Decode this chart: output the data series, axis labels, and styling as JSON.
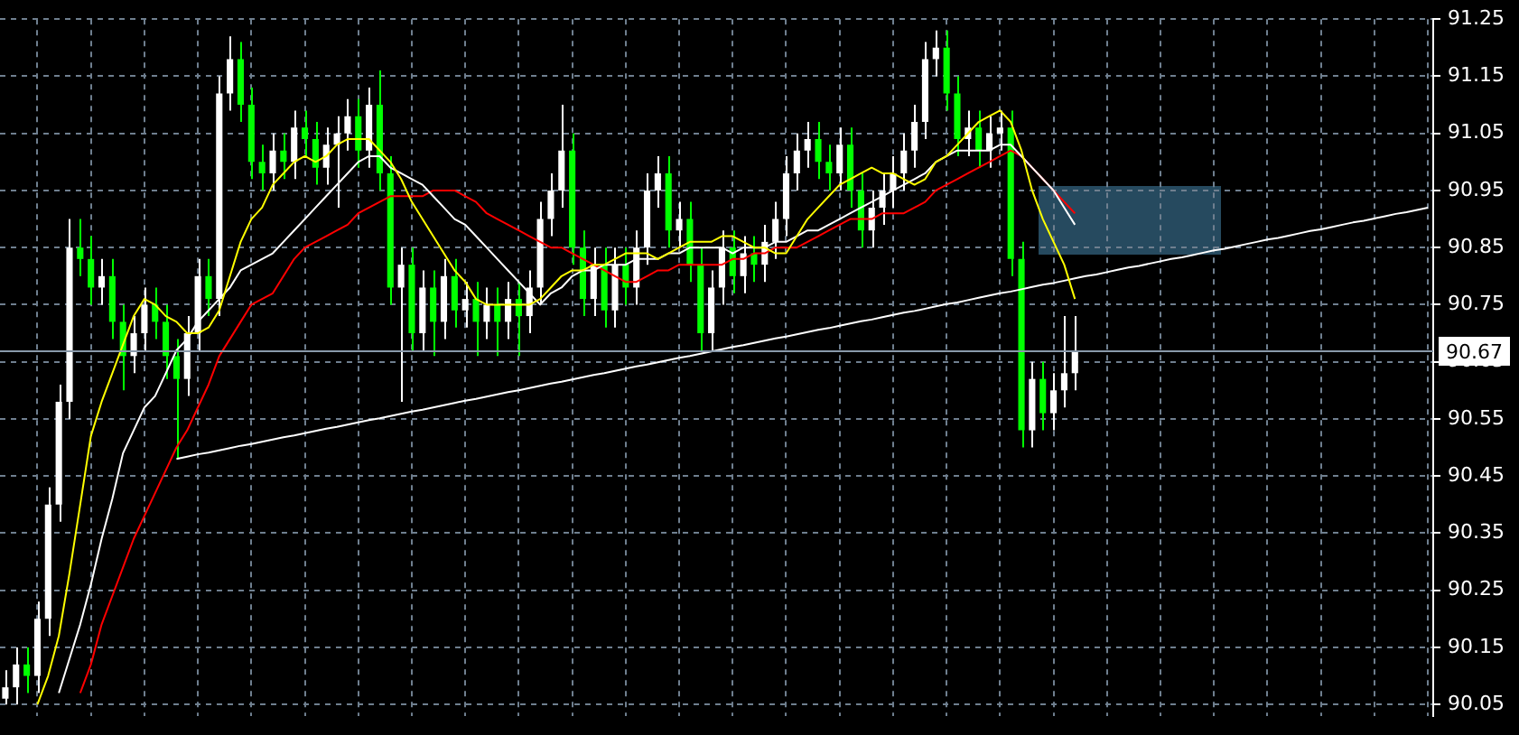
{
  "chart_data": {
    "type": "candlestick",
    "categories": [
      null,
      null,
      null,
      null,
      null,
      null,
      null,
      null,
      null,
      null,
      null,
      null,
      null,
      null,
      null,
      null,
      null,
      null,
      null,
      null,
      null,
      null,
      null,
      null,
      null,
      null,
      null,
      null,
      null,
      null,
      null,
      null,
      null,
      null,
      null,
      null,
      null,
      null,
      null,
      null,
      null,
      null,
      null,
      null,
      null,
      null,
      null,
      null,
      null,
      null,
      null,
      null,
      null,
      null,
      null,
      null,
      null,
      null,
      null,
      null,
      null,
      null,
      null,
      null,
      null,
      null,
      null,
      null,
      null,
      null,
      null,
      null,
      null,
      null,
      null,
      null,
      null,
      null,
      null,
      null,
      null,
      null,
      null,
      null,
      null,
      null,
      null,
      null,
      null,
      null,
      null,
      null,
      null,
      null,
      null,
      null,
      null,
      null,
      null,
      null,
      null,
      null,
      null,
      null,
      null,
      null,
      null,
      null,
      null,
      null,
      null,
      null,
      null,
      null,
      null,
      null,
      null,
      null,
      null,
      null,
      null,
      null,
      null,
      null,
      null,
      null,
      null,
      null,
      null,
      null,
      null,
      null,
      null,
      null
    ],
    "ohlc": [
      [
        90.06,
        90.11,
        90.05,
        90.08
      ],
      [
        90.08,
        90.15,
        90.05,
        90.12
      ],
      [
        90.12,
        90.15,
        90.07,
        90.1
      ],
      [
        90.1,
        90.23,
        90.07,
        90.2
      ],
      [
        90.2,
        90.43,
        90.17,
        90.4
      ],
      [
        90.4,
        90.61,
        90.37,
        90.58
      ],
      [
        90.58,
        90.9,
        90.55,
        90.85
      ],
      [
        90.85,
        90.9,
        90.8,
        90.83
      ],
      [
        90.83,
        90.87,
        90.75,
        90.78
      ],
      [
        90.78,
        90.83,
        90.75,
        90.8
      ],
      [
        90.8,
        90.83,
        90.69,
        90.72
      ],
      [
        90.72,
        90.75,
        90.6,
        90.66
      ],
      [
        90.66,
        90.73,
        90.63,
        90.7
      ],
      [
        90.7,
        90.78,
        90.67,
        90.75
      ],
      [
        90.75,
        90.78,
        90.69,
        90.72
      ],
      [
        90.72,
        90.75,
        90.62,
        90.66
      ],
      [
        90.66,
        90.69,
        90.48,
        90.62
      ],
      [
        90.62,
        90.73,
        90.59,
        90.7
      ],
      [
        90.7,
        90.83,
        90.67,
        90.8
      ],
      [
        90.8,
        90.83,
        90.73,
        90.76
      ],
      [
        90.76,
        91.15,
        90.73,
        91.12
      ],
      [
        91.12,
        91.22,
        91.09,
        91.18
      ],
      [
        91.18,
        91.21,
        91.07,
        91.1
      ],
      [
        91.1,
        91.13,
        90.97,
        91.0
      ],
      [
        91.0,
        91.03,
        90.95,
        90.98
      ],
      [
        90.98,
        91.05,
        90.95,
        91.02
      ],
      [
        91.02,
        91.05,
        90.97,
        91.0
      ],
      [
        91.0,
        91.09,
        90.97,
        91.06
      ],
      [
        91.06,
        91.09,
        91.01,
        91.04
      ],
      [
        91.04,
        91.07,
        90.96,
        90.99
      ],
      [
        90.99,
        91.06,
        90.96,
        91.03
      ],
      [
        91.03,
        91.08,
        90.92,
        91.05
      ],
      [
        91.05,
        91.11,
        91.02,
        91.08
      ],
      [
        91.08,
        91.11,
        90.99,
        91.02
      ],
      [
        91.02,
        91.13,
        90.99,
        91.1
      ],
      [
        91.1,
        91.16,
        90.95,
        90.98
      ],
      [
        90.98,
        91.01,
        90.75,
        90.78
      ],
      [
        90.78,
        90.85,
        90.58,
        90.82
      ],
      [
        90.82,
        90.85,
        90.67,
        90.7
      ],
      [
        90.7,
        90.81,
        90.67,
        90.78
      ],
      [
        90.78,
        90.81,
        90.66,
        90.72
      ],
      [
        90.72,
        90.83,
        90.69,
        90.8
      ],
      [
        90.8,
        90.83,
        90.71,
        90.74
      ],
      [
        90.74,
        90.79,
        90.71,
        90.76
      ],
      [
        90.76,
        90.79,
        90.66,
        90.72
      ],
      [
        90.72,
        90.78,
        90.69,
        90.75
      ],
      [
        90.75,
        90.78,
        90.66,
        90.72
      ],
      [
        90.72,
        90.79,
        90.69,
        90.76
      ],
      [
        90.76,
        90.79,
        90.66,
        90.73
      ],
      [
        90.73,
        90.81,
        90.7,
        90.78
      ],
      [
        90.78,
        90.93,
        90.75,
        90.9
      ],
      [
        90.9,
        90.98,
        90.87,
        90.95
      ],
      [
        90.95,
        91.1,
        90.92,
        91.02
      ],
      [
        91.02,
        91.05,
        90.82,
        90.85
      ],
      [
        90.85,
        90.88,
        90.73,
        90.76
      ],
      [
        90.76,
        90.85,
        90.73,
        90.82
      ],
      [
        90.82,
        90.85,
        90.71,
        90.74
      ],
      [
        90.74,
        90.85,
        90.71,
        90.82
      ],
      [
        90.82,
        90.85,
        90.75,
        90.78
      ],
      [
        90.78,
        90.88,
        90.75,
        90.85
      ],
      [
        90.85,
        90.98,
        90.82,
        90.95
      ],
      [
        90.95,
        91.01,
        90.92,
        90.98
      ],
      [
        90.98,
        91.01,
        90.85,
        90.88
      ],
      [
        90.88,
        90.93,
        90.85,
        90.9
      ],
      [
        90.9,
        90.93,
        90.79,
        90.82
      ],
      [
        90.82,
        90.85,
        90.67,
        90.7
      ],
      [
        90.7,
        90.81,
        90.67,
        90.78
      ],
      [
        90.78,
        90.88,
        90.75,
        90.85
      ],
      [
        90.85,
        90.88,
        90.77,
        90.8
      ],
      [
        90.8,
        90.87,
        90.77,
        90.84
      ],
      [
        90.84,
        90.87,
        90.79,
        90.82
      ],
      [
        90.82,
        90.89,
        90.79,
        90.86
      ],
      [
        90.86,
        90.93,
        90.83,
        90.9
      ],
      [
        90.9,
        91.01,
        90.87,
        90.98
      ],
      [
        90.98,
        91.05,
        90.95,
        91.02
      ],
      [
        91.02,
        91.07,
        90.99,
        91.04
      ],
      [
        91.04,
        91.07,
        90.97,
        91.0
      ],
      [
        91.0,
        91.03,
        90.95,
        90.98
      ],
      [
        90.98,
        91.06,
        90.95,
        91.03
      ],
      [
        91.03,
        91.06,
        90.92,
        90.95
      ],
      [
        90.95,
        90.98,
        90.85,
        90.88
      ],
      [
        90.88,
        90.95,
        90.85,
        90.92
      ],
      [
        90.92,
        90.98,
        90.89,
        90.95
      ],
      [
        90.95,
        91.01,
        90.92,
        90.98
      ],
      [
        90.98,
        91.05,
        90.95,
        91.02
      ],
      [
        91.02,
        91.1,
        90.99,
        91.07
      ],
      [
        91.07,
        91.21,
        91.04,
        91.18
      ],
      [
        91.18,
        91.23,
        91.15,
        91.2
      ],
      [
        91.2,
        91.23,
        91.09,
        91.12
      ],
      [
        91.12,
        91.15,
        91.01,
        91.04
      ],
      [
        91.04,
        91.09,
        91.01,
        91.06
      ],
      [
        91.06,
        91.09,
        90.99,
        91.02
      ],
      [
        91.02,
        91.08,
        90.99,
        91.05
      ],
      [
        91.05,
        91.09,
        91.02,
        91.06
      ],
      [
        91.06,
        91.09,
        90.8,
        90.83
      ],
      [
        90.83,
        90.86,
        90.5,
        90.53
      ],
      [
        90.53,
        90.65,
        90.5,
        90.62
      ],
      [
        90.62,
        90.65,
        90.53,
        90.56
      ],
      [
        90.56,
        90.63,
        90.53,
        90.6
      ],
      [
        90.6,
        90.73,
        90.57,
        90.63
      ],
      [
        90.63,
        90.73,
        90.6,
        90.67
      ],
      null,
      null,
      null,
      null,
      null,
      null,
      null,
      null,
      null,
      null,
      null,
      null,
      null,
      null,
      null,
      null,
      null,
      null,
      null,
      null,
      null,
      null,
      null,
      null,
      null,
      null,
      null,
      null,
      null,
      null,
      null,
      null,
      null
    ],
    "colors": [
      "#ffffff",
      "#ffffff",
      "#00ff00",
      "#ffffff",
      "#ffffff",
      "#ffffff",
      "#ffffff",
      "#00ff00",
      "#00ff00",
      "#ffffff",
      "#00ff00",
      "#00ff00",
      "#ffffff",
      "#ffffff",
      "#00ff00",
      "#00ff00",
      "#00ff00",
      "#ffffff",
      "#ffffff",
      "#00ff00",
      "#ffffff",
      "#ffffff",
      "#00ff00",
      "#00ff00",
      "#00ff00",
      "#ffffff",
      "#00ff00",
      "#ffffff",
      "#00ff00",
      "#00ff00",
      "#ffffff",
      "#ffffff",
      "#ffffff",
      "#00ff00",
      "#ffffff",
      "#00ff00",
      "#00ff00",
      "#ffffff",
      "#00ff00",
      "#ffffff",
      "#00ff00",
      "#ffffff",
      "#00ff00",
      "#ffffff",
      "#00ff00",
      "#ffffff",
      "#00ff00",
      "#ffffff",
      "#00ff00",
      "#ffffff",
      "#ffffff",
      "#ffffff",
      "#ffffff",
      "#00ff00",
      "#00ff00",
      "#ffffff",
      "#00ff00",
      "#ffffff",
      "#00ff00",
      "#ffffff",
      "#ffffff",
      "#ffffff",
      "#00ff00",
      "#ffffff",
      "#00ff00",
      "#00ff00",
      "#ffffff",
      "#ffffff",
      "#00ff00",
      "#ffffff",
      "#00ff00",
      "#ffffff",
      "#ffffff",
      "#ffffff",
      "#ffffff",
      "#ffffff",
      "#00ff00",
      "#00ff00",
      "#ffffff",
      "#00ff00",
      "#00ff00",
      "#ffffff",
      "#ffffff",
      "#ffffff",
      "#ffffff",
      "#ffffff",
      "#ffffff",
      "#ffffff",
      "#00ff00",
      "#00ff00",
      "#ffffff",
      "#00ff00",
      "#ffffff",
      "#ffffff",
      "#00ff00",
      "#00ff00",
      "#ffffff",
      "#00ff00",
      "#ffffff",
      "#ffffff",
      "#ffffff",
      null,
      null,
      null,
      null,
      null,
      null,
      null,
      null,
      null,
      null,
      null,
      null,
      null,
      null,
      null,
      null,
      null,
      null,
      null,
      null,
      null,
      null,
      null,
      null,
      null,
      null,
      null,
      null,
      null,
      null,
      null,
      null,
      null
    ],
    "series": [
      {
        "type": "line",
        "color": "#ffff00",
        "values": [
          null,
          null,
          null,
          90.05,
          90.1,
          90.17,
          90.28,
          90.4,
          90.52,
          90.58,
          90.63,
          90.68,
          90.73,
          90.76,
          90.75,
          90.73,
          90.72,
          90.7,
          90.7,
          90.71,
          90.74,
          90.8,
          90.86,
          90.9,
          90.92,
          90.96,
          90.98,
          91.0,
          91.01,
          91.0,
          91.01,
          91.03,
          91.04,
          91.04,
          91.04,
          91.02,
          91.0,
          90.97,
          90.93,
          90.9,
          90.87,
          90.84,
          90.81,
          90.79,
          90.76,
          90.75,
          90.75,
          90.75,
          90.75,
          90.75,
          90.76,
          90.78,
          90.8,
          90.81,
          90.81,
          90.82,
          90.82,
          90.83,
          90.84,
          90.84,
          90.84,
          90.83,
          90.84,
          90.85,
          90.86,
          90.86,
          90.86,
          90.87,
          90.87,
          90.86,
          90.85,
          90.85,
          90.84,
          90.84,
          90.87,
          90.9,
          90.92,
          90.94,
          90.96,
          90.97,
          90.98,
          90.99,
          90.98,
          90.98,
          90.97,
          90.96,
          90.97,
          91.0,
          91.01,
          91.03,
          91.05,
          91.07,
          91.08,
          91.09,
          91.07,
          91.02,
          90.95,
          90.9,
          90.86,
          90.82,
          90.76,
          null,
          null,
          null,
          null,
          null,
          null,
          null,
          null,
          null,
          null,
          null,
          null,
          null,
          null,
          null,
          null,
          null,
          null,
          null,
          null,
          null,
          null,
          null,
          null,
          null,
          null,
          null,
          null,
          null,
          null,
          null,
          null,
          null
        ]
      },
      {
        "type": "line",
        "color": "#ffffff",
        "values": [
          null,
          null,
          null,
          null,
          null,
          90.07,
          90.13,
          90.19,
          90.26,
          90.34,
          90.41,
          90.49,
          90.53,
          90.57,
          90.59,
          90.63,
          90.67,
          90.69,
          90.72,
          90.74,
          90.76,
          90.78,
          90.81,
          90.82,
          90.83,
          90.84,
          90.86,
          90.88,
          90.9,
          90.92,
          90.94,
          90.96,
          90.98,
          91.0,
          91.01,
          91.01,
          90.99,
          90.98,
          90.97,
          90.96,
          90.94,
          90.92,
          90.9,
          90.89,
          90.87,
          90.85,
          90.83,
          90.81,
          90.79,
          90.77,
          90.75,
          90.77,
          90.78,
          90.8,
          90.81,
          90.81,
          90.82,
          90.82,
          90.82,
          90.83,
          90.83,
          90.83,
          90.84,
          90.84,
          90.85,
          90.85,
          90.85,
          90.85,
          90.84,
          90.85,
          90.85,
          90.85,
          90.86,
          90.86,
          90.87,
          90.88,
          90.88,
          90.89,
          90.9,
          90.91,
          90.92,
          90.93,
          90.94,
          90.95,
          90.96,
          90.97,
          90.98,
          91.0,
          91.01,
          91.02,
          91.02,
          91.02,
          91.02,
          91.03,
          91.03,
          91.01,
          90.99,
          90.97,
          90.95,
          90.92,
          90.89,
          null,
          null,
          null,
          null,
          null,
          null,
          null,
          null,
          null,
          null,
          null,
          null,
          null,
          null,
          null,
          null,
          null,
          null,
          null,
          null,
          null,
          null,
          null,
          null,
          null,
          null,
          null,
          null,
          null,
          null,
          null,
          null,
          null
        ]
      },
      {
        "type": "line",
        "color": "#ff0000",
        "values": [
          null,
          null,
          null,
          null,
          null,
          null,
          null,
          90.07,
          90.12,
          90.19,
          90.24,
          90.29,
          90.34,
          90.38,
          90.42,
          90.46,
          90.5,
          90.53,
          90.57,
          90.61,
          90.66,
          90.69,
          90.72,
          90.75,
          90.76,
          90.77,
          90.8,
          90.83,
          90.85,
          90.86,
          90.87,
          90.88,
          90.89,
          90.91,
          90.92,
          90.93,
          90.94,
          90.94,
          90.94,
          90.94,
          90.95,
          90.95,
          90.95,
          90.94,
          90.93,
          90.91,
          90.9,
          90.89,
          90.88,
          90.87,
          90.86,
          90.85,
          90.85,
          90.84,
          90.83,
          90.82,
          90.81,
          90.8,
          90.79,
          90.79,
          90.8,
          90.81,
          90.81,
          90.82,
          90.82,
          90.82,
          90.82,
          90.82,
          90.83,
          90.83,
          90.84,
          90.84,
          90.85,
          90.85,
          90.85,
          90.86,
          90.87,
          90.88,
          90.89,
          90.9,
          90.9,
          90.9,
          90.91,
          90.91,
          90.91,
          90.92,
          90.93,
          90.95,
          90.96,
          90.97,
          90.98,
          90.99,
          91.0,
          91.01,
          91.02,
          91.01,
          90.99,
          90.97,
          90.95,
          90.93,
          90.91,
          null,
          null,
          null,
          null,
          null,
          null,
          null,
          null,
          null,
          null,
          null,
          null,
          null,
          null,
          null,
          null,
          null,
          null,
          null,
          null,
          null,
          null,
          null,
          null,
          null,
          null,
          null,
          null,
          null,
          null,
          null,
          null,
          null
        ]
      },
      {
        "type": "line",
        "color": "#ffffff",
        "values": [
          null,
          null,
          null,
          null,
          null,
          null,
          null,
          null,
          null,
          null,
          null,
          null,
          null,
          null,
          null,
          null,
          90.48,
          90.484,
          90.488,
          90.491,
          90.495,
          90.499,
          90.503,
          90.506,
          90.51,
          90.514,
          90.518,
          90.521,
          90.525,
          90.529,
          90.533,
          90.536,
          90.54,
          90.544,
          90.548,
          90.551,
          90.555,
          90.559,
          90.563,
          90.566,
          90.57,
          90.574,
          90.578,
          90.582,
          90.585,
          90.589,
          90.593,
          90.597,
          90.6,
          90.604,
          90.608,
          90.612,
          90.615,
          90.619,
          90.623,
          90.627,
          90.63,
          90.634,
          90.638,
          90.642,
          90.645,
          90.649,
          90.653,
          90.657,
          90.66,
          90.664,
          90.668,
          90.672,
          90.676,
          90.679,
          90.683,
          90.687,
          90.691,
          90.694,
          90.698,
          90.702,
          90.706,
          90.709,
          90.713,
          90.717,
          90.721,
          90.724,
          90.728,
          90.732,
          90.736,
          90.739,
          90.743,
          90.747,
          90.751,
          90.754,
          90.758,
          90.762,
          90.766,
          90.77,
          90.773,
          90.777,
          90.781,
          90.785,
          90.788,
          90.792,
          90.796,
          90.8,
          90.803,
          90.807,
          90.811,
          90.815,
          90.818,
          90.822,
          90.826,
          90.83,
          90.833,
          90.837,
          90.841,
          90.845,
          90.848,
          90.852,
          90.856,
          90.86,
          90.864,
          90.867,
          90.871,
          90.875,
          90.879,
          90.882,
          90.886,
          90.89,
          90.894,
          90.897,
          90.901,
          90.905,
          90.909,
          90.912,
          90.916,
          90.92
        ]
      }
    ],
    "ylim": [
      90.03,
      91.25
    ],
    "yticks": [
      90.05,
      90.15,
      90.25,
      90.35,
      90.45,
      90.55,
      90.65,
      90.75,
      90.85,
      90.95,
      91.05,
      91.15,
      91.25
    ],
    "ref_lines": [
      {
        "axis": "y",
        "value": 90.67,
        "label": "90.67",
        "color": "#8899aa"
      }
    ],
    "grid": true,
    "legend": false,
    "tick_labels": "y",
    "marker": "none",
    "line_style": "solid"
  }
}
